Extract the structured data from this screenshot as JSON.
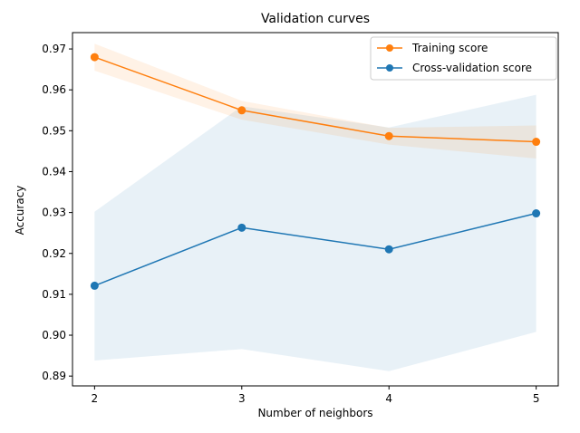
{
  "chart_data": {
    "type": "line",
    "title": "Validation curves",
    "xlabel": "Number of neighbors",
    "ylabel": "Accuracy",
    "x": [
      2,
      3,
      4,
      5
    ],
    "xlim": [
      1.85,
      5.15
    ],
    "ylim": [
      0.8876,
      0.974
    ],
    "xticks": [
      "2",
      "3",
      "4",
      "5"
    ],
    "yticks": [
      "0.89",
      "0.90",
      "0.91",
      "0.92",
      "0.93",
      "0.94",
      "0.95",
      "0.96",
      "0.97"
    ],
    "grid": false,
    "legend_position": "upper right",
    "series": [
      {
        "name": "Training score",
        "color": "#ff7f0e",
        "marker": "circle",
        "values": [
          0.968,
          0.955,
          0.9487,
          0.9473
        ],
        "band_upper": [
          0.9713,
          0.9573,
          0.9507,
          0.9513
        ],
        "band_lower": [
          0.9647,
          0.9527,
          0.9466,
          0.9432
        ]
      },
      {
        "name": "Cross-validation score",
        "color": "#1f77b4",
        "marker": "circle",
        "values": [
          0.9121,
          0.9263,
          0.921,
          0.9298
        ],
        "band_upper": [
          0.9302,
          0.956,
          0.9508,
          0.9588
        ],
        "band_lower": [
          0.8938,
          0.8966,
          0.8912,
          0.9008
        ]
      }
    ]
  }
}
